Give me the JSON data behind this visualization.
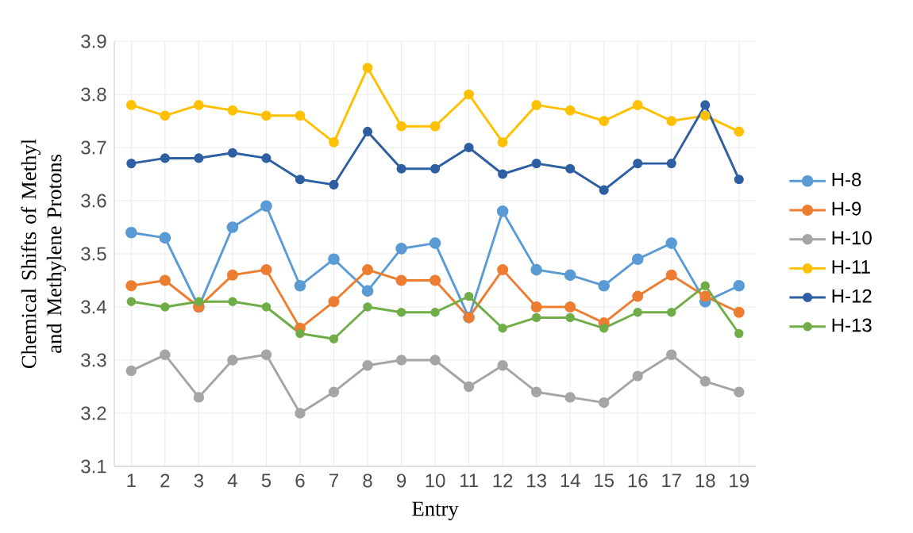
{
  "chart_data": {
    "type": "line",
    "xlabel": "Entry",
    "ylabel": "Chemical Shifts of Methyl and Methylene Protons",
    "categories": [
      "1",
      "2",
      "3",
      "4",
      "5",
      "6",
      "7",
      "8",
      "9",
      "10",
      "11",
      "12",
      "13",
      "14",
      "15",
      "16",
      "17",
      "18",
      "19"
    ],
    "ylim": [
      3.1,
      3.9
    ],
    "yticks": [
      3.1,
      3.2,
      3.3,
      3.4,
      3.5,
      3.6,
      3.7,
      3.8,
      3.9
    ],
    "grid": true,
    "legend": "right",
    "marker": "circle",
    "line_style": "solid",
    "series": [
      {
        "name": "H-8",
        "color": "#5b9bd5",
        "values": [
          3.54,
          3.53,
          3.4,
          3.55,
          3.59,
          3.44,
          3.49,
          3.43,
          3.51,
          3.52,
          3.38,
          3.58,
          3.47,
          3.46,
          3.44,
          3.49,
          3.52,
          3.41,
          3.44
        ]
      },
      {
        "name": "H-9",
        "color": "#ed7d31",
        "values": [
          3.44,
          3.45,
          3.4,
          3.46,
          3.47,
          3.36,
          3.41,
          3.47,
          3.45,
          3.45,
          3.38,
          3.47,
          3.4,
          3.4,
          3.37,
          3.42,
          3.46,
          3.42,
          3.39
        ]
      },
      {
        "name": "H-10",
        "color": "#a5a5a5",
        "values": [
          3.28,
          3.31,
          3.23,
          3.3,
          3.31,
          3.2,
          3.24,
          3.29,
          3.3,
          3.3,
          3.25,
          3.29,
          3.24,
          3.23,
          3.22,
          3.27,
          3.31,
          3.26,
          3.24
        ]
      },
      {
        "name": "H-11",
        "color": "#ffc000",
        "values": [
          3.78,
          3.76,
          3.78,
          3.77,
          3.76,
          3.76,
          3.71,
          3.85,
          3.74,
          3.74,
          3.8,
          3.71,
          3.78,
          3.77,
          3.75,
          3.78,
          3.75,
          3.76,
          3.73
        ]
      },
      {
        "name": "H-12",
        "color": "#2e5fa3",
        "values": [
          3.67,
          3.68,
          3.68,
          3.69,
          3.68,
          3.64,
          3.63,
          3.73,
          3.66,
          3.66,
          3.7,
          3.65,
          3.67,
          3.66,
          3.62,
          3.67,
          3.67,
          3.78,
          3.64
        ]
      },
      {
        "name": "H-13",
        "color": "#70ad47",
        "values": [
          3.41,
          3.4,
          3.41,
          3.41,
          3.4,
          3.35,
          3.34,
          3.4,
          3.39,
          3.39,
          3.42,
          3.36,
          3.38,
          3.38,
          3.36,
          3.39,
          3.39,
          3.44,
          3.35
        ]
      }
    ]
  }
}
